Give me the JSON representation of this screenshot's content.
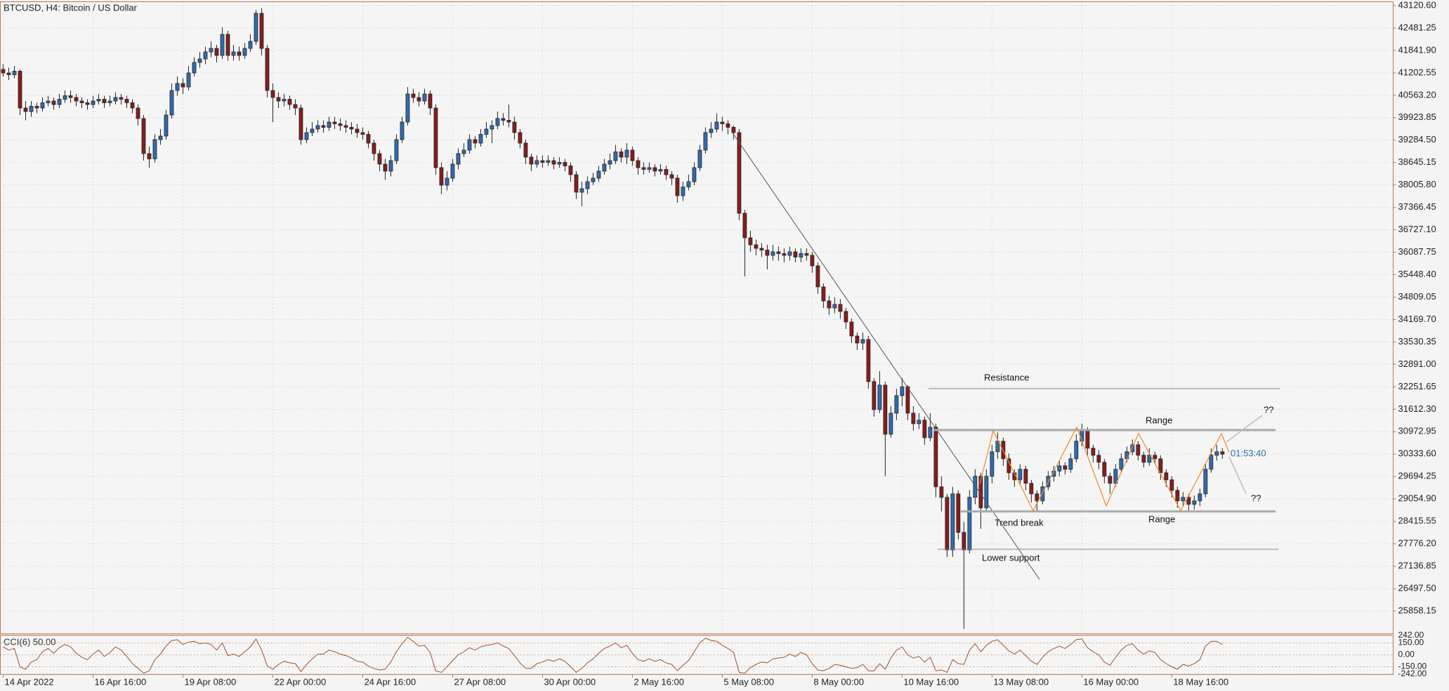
{
  "chart_data": {
    "type": "candlestick",
    "title": "BTCUSD, H4:  Bitcoin / US Dollar",
    "open": [
      41300,
      41200,
      41150,
      41250,
      40200,
      40100,
      40250,
      40200,
      40350,
      40400,
      40300,
      40450,
      40550,
      40500,
      40400,
      40350,
      40300,
      40400,
      40450,
      40350,
      40400,
      40500,
      40450,
      40350,
      40200,
      39900,
      38900,
      38750,
      39300,
      39400,
      40000,
      40700,
      40900,
      40800,
      41200,
      41500,
      41600,
      41800,
      41900,
      41700,
      42300,
      41700,
      41800,
      41700,
      41900,
      42100,
      42900,
      41900,
      40700,
      40500,
      40400,
      40450,
      40300,
      40200,
      39300,
      39500,
      39600,
      39700,
      39650,
      39800,
      39750,
      39700,
      39650,
      39600,
      39500,
      39450,
      39200,
      38900,
      38600,
      38400,
      38700,
      39300,
      39800,
      40600,
      40500,
      40400,
      40600,
      40200,
      38500,
      38000,
      38200,
      38600,
      38900,
      39000,
      39300,
      39200,
      39450,
      39600,
      39700,
      39900,
      39850,
      39800,
      39500,
      39200,
      38800,
      38600,
      38700,
      38650,
      38700,
      38600,
      38650,
      38550,
      38300,
      37800,
      37900,
      38100,
      38200,
      38400,
      38600,
      38700,
      38950,
      38800,
      39000,
      38700,
      38500,
      38450,
      38500,
      38400,
      38450,
      38300,
      38200,
      37700,
      37950,
      38100,
      38500,
      39000,
      39500,
      39600,
      39800,
      39750,
      39650,
      39500,
      37200,
      36500,
      36300,
      36200,
      36150,
      36000,
      36100,
      36050,
      36000,
      36100,
      35950,
      36050,
      36000,
      35700,
      35100,
      34700,
      34500,
      34600,
      34400,
      34100,
      33700,
      33500,
      33600,
      32400,
      31600,
      32300,
      30900,
      31500,
      32000,
      32250,
      31500,
      31200,
      31300,
      30800,
      31100,
      29400,
      29100,
      27600,
      29200,
      28100,
      27600,
      29100,
      29700,
      28800,
      29700,
      30400,
      30700,
      30200,
      29800,
      29600,
      29900,
      29500,
      29200,
      29000,
      29400,
      29700,
      29850,
      30000,
      29900,
      30200,
      30700,
      31000,
      30500,
      30300,
      30100,
      29700,
      29500,
      29900,
      30200,
      30400,
      30600,
      30300,
      30100,
      30300,
      30200,
      29800,
      29600,
      29300,
      29000,
      29100,
      28900,
      29000,
      29200,
      29900,
      30300,
      30400
    ],
    "high": [
      41450,
      41350,
      41400,
      41300,
      40400,
      40400,
      40350,
      40500,
      40550,
      40500,
      40600,
      40700,
      40700,
      40600,
      40500,
      40450,
      40550,
      40600,
      40550,
      40550,
      40650,
      40600,
      40550,
      40450,
      40300,
      40000,
      39100,
      39450,
      39600,
      40150,
      40900,
      41100,
      41050,
      41400,
      41650,
      41800,
      41950,
      42100,
      42000,
      42500,
      42400,
      42000,
      41950,
      42050,
      42300,
      43000,
      43050,
      42000,
      40900,
      40650,
      40600,
      40550,
      40450,
      40300,
      39650,
      39800,
      39850,
      39850,
      39950,
      39950,
      39900,
      39850,
      39800,
      39750,
      39650,
      39550,
      39300,
      39000,
      38750,
      38850,
      39450,
      39950,
      40800,
      40750,
      40650,
      40750,
      40700,
      40300,
      38650,
      38400,
      38750,
      39050,
      39200,
      39450,
      39400,
      39600,
      39800,
      39850,
      40100,
      40050,
      40300,
      39950,
      39600,
      39300,
      38900,
      38850,
      38850,
      38850,
      38800,
      38800,
      38750,
      38650,
      38400,
      38100,
      38250,
      38350,
      38550,
      38750,
      38900,
      39150,
      39050,
      39200,
      39100,
      38800,
      38650,
      38650,
      38600,
      38600,
      38550,
      38400,
      38300,
      38100,
      38300,
      38650,
      39150,
      39650,
      39800,
      40050,
      39950,
      39850,
      39700,
      39600,
      37300,
      36700,
      36450,
      36350,
      36300,
      36300,
      36250,
      36200,
      36250,
      36200,
      36200,
      36200,
      36100,
      35800,
      35200,
      34850,
      34800,
      34750,
      34500,
      34200,
      33800,
      33800,
      33700,
      32500,
      32700,
      32400,
      31700,
      32200,
      32500,
      32300,
      31700,
      31500,
      31400,
      31500,
      31200,
      29700,
      29200,
      29400,
      29300,
      28400,
      29300,
      29900,
      29800,
      29900,
      30600,
      30950,
      30800,
      30350,
      29900,
      30050,
      30000,
      29600,
      29300,
      29550,
      29850,
      30000,
      30150,
      30100,
      30350,
      30900,
      31200,
      31100,
      30600,
      30450,
      30200,
      29800,
      30050,
      30350,
      30550,
      30750,
      30700,
      30400,
      30500,
      30400,
      30300,
      29900,
      29700,
      29400,
      29250,
      29200,
      29150,
      29350,
      30050,
      30500,
      30600,
      30500
    ],
    "low": [
      41100,
      41000,
      41050,
      40000,
      39850,
      39950,
      40050,
      40100,
      40250,
      40150,
      40200,
      40350,
      40350,
      40250,
      40200,
      40150,
      40200,
      40300,
      40200,
      40250,
      40300,
      40300,
      40200,
      40050,
      39700,
      38700,
      38500,
      38650,
      39150,
      39300,
      39900,
      40550,
      40600,
      40700,
      41100,
      41350,
      41450,
      41650,
      41500,
      41600,
      41550,
      41550,
      41550,
      41600,
      41800,
      42000,
      41700,
      40500,
      39800,
      40200,
      40250,
      40150,
      40000,
      39150,
      39200,
      39400,
      39500,
      39500,
      39550,
      39600,
      39550,
      39500,
      39450,
      39350,
      39300,
      39050,
      38700,
      38400,
      38150,
      38250,
      38600,
      39200,
      39700,
      40350,
      40250,
      40300,
      40000,
      38300,
      37750,
      37850,
      38100,
      38450,
      38800,
      38900,
      39050,
      39100,
      39350,
      39200,
      39600,
      39700,
      39650,
      39300,
      39050,
      38600,
      38400,
      38500,
      38500,
      38550,
      38450,
      38500,
      38400,
      38100,
      37600,
      37400,
      37750,
      38000,
      38100,
      38300,
      38450,
      38600,
      38650,
      38600,
      38550,
      38300,
      38300,
      38350,
      38250,
      38300,
      38150,
      38000,
      37500,
      37550,
      37850,
      38000,
      38400,
      38900,
      39350,
      39500,
      39550,
      39450,
      39300,
      37000,
      35400,
      36100,
      36000,
      35950,
      35600,
      35850,
      35850,
      35800,
      35850,
      35800,
      35800,
      35850,
      35500,
      34900,
      34500,
      34300,
      34350,
      34200,
      33900,
      33500,
      33300,
      33300,
      32200,
      31400,
      31500,
      29700,
      30800,
      31300,
      31700,
      31300,
      31000,
      31050,
      30600,
      30700,
      29100,
      28700,
      27400,
      27400,
      27900,
      25350,
      27500,
      28900,
      28200,
      28700,
      29500,
      30200,
      30000,
      29600,
      29400,
      29450,
      29300,
      28950,
      28700,
      28900,
      29300,
      29550,
      29700,
      29750,
      29800,
      30100,
      30550,
      30300,
      30100,
      29900,
      29500,
      29200,
      29400,
      29800,
      30100,
      30300,
      30150,
      29950,
      30000,
      30050,
      29600,
      29400,
      29100,
      28800,
      28850,
      28700,
      28750,
      28850,
      29100,
      29800,
      30150,
      30200
    ],
    "close": [
      41200,
      41150,
      41250,
      40200,
      40100,
      40250,
      40200,
      40350,
      40400,
      40300,
      40450,
      40550,
      40500,
      40400,
      40350,
      40300,
      40400,
      40450,
      40350,
      40400,
      40500,
      40450,
      40350,
      40200,
      39900,
      38900,
      38750,
      39300,
      39400,
      40000,
      40700,
      40900,
      40800,
      41200,
      41500,
      41600,
      41800,
      41900,
      41700,
      42300,
      41700,
      41800,
      41700,
      41900,
      42100,
      42900,
      41900,
      40700,
      40500,
      40400,
      40450,
      40300,
      40200,
      39300,
      39500,
      39600,
      39700,
      39650,
      39800,
      39750,
      39700,
      39650,
      39600,
      39500,
      39450,
      39200,
      38900,
      38600,
      38400,
      38700,
      39300,
      39800,
      40600,
      40500,
      40400,
      40600,
      40200,
      38500,
      38000,
      38200,
      38600,
      38900,
      39000,
      39300,
      39200,
      39450,
      39600,
      39700,
      39900,
      39850,
      39800,
      39500,
      39200,
      38800,
      38600,
      38700,
      38650,
      38700,
      38600,
      38650,
      38550,
      38300,
      37800,
      37900,
      38100,
      38200,
      38400,
      38600,
      38700,
      38950,
      38800,
      39000,
      38700,
      38500,
      38450,
      38500,
      38400,
      38450,
      38300,
      38200,
      37700,
      37950,
      38100,
      38500,
      39000,
      39500,
      39600,
      39800,
      39750,
      39650,
      39500,
      37200,
      36500,
      36300,
      36200,
      36150,
      36000,
      36100,
      36050,
      36000,
      36100,
      35950,
      36050,
      36000,
      35700,
      35100,
      34700,
      34500,
      34600,
      34400,
      34100,
      33700,
      33500,
      33600,
      32400,
      31600,
      32300,
      30900,
      31500,
      32000,
      32250,
      31500,
      31200,
      31300,
      30800,
      31100,
      29400,
      29100,
      27600,
      29200,
      28100,
      27600,
      29100,
      29700,
      28800,
      29700,
      30400,
      30700,
      30200,
      29800,
      29600,
      29900,
      29500,
      29200,
      29000,
      29400,
      29700,
      29850,
      30000,
      29900,
      30200,
      30700,
      31000,
      30500,
      30300,
      30100,
      29700,
      29500,
      29900,
      30200,
      30400,
      30600,
      30300,
      30100,
      30300,
      30200,
      29800,
      29600,
      29300,
      29000,
      29100,
      28900,
      29000,
      29200,
      29900,
      30300,
      30400,
      30330
    ],
    "up_color": "#2e6cb3",
    "down_color": "#8a1c1c",
    "xlim": [
      -0.5,
      247.4
    ],
    "xticks": [
      {
        "value": 0,
        "label": "14 Apr 2022"
      },
      {
        "value": 16,
        "label": "16 Apr 16:00"
      },
      {
        "value": 32,
        "label": "19 Apr 08:00"
      },
      {
        "value": 48,
        "label": "22 Apr 00:00"
      },
      {
        "value": 64,
        "label": "24 Apr 16:00"
      },
      {
        "value": 80,
        "label": "27 Apr 08:00"
      },
      {
        "value": 96,
        "label": "30 Apr 00:00"
      },
      {
        "value": 112,
        "label": "2 May 16:00"
      },
      {
        "value": 128,
        "label": "5 May 08:00"
      },
      {
        "value": 144,
        "label": "8 May 00:00"
      },
      {
        "value": 160,
        "label": "10 May 16:00"
      },
      {
        "value": 176,
        "label": "13 May 08:00"
      },
      {
        "value": 192,
        "label": "16 May 00:00"
      },
      {
        "value": 208,
        "label": "18 May 16:00"
      }
    ],
    "ylim": [
      25218,
      43220
    ],
    "yticks": [
      {
        "value": 43120.6,
        "label": "43120.60"
      },
      42481.25,
      {
        "value": 41841.9,
        "label": "41841.90"
      },
      41202.55,
      {
        "value": 40563.2,
        "label": "40563.20"
      },
      39923.85,
      {
        "value": 39284.5,
        "label": "39284.50"
      },
      38645.15,
      {
        "value": 38005.8,
        "label": "38005.80"
      },
      37366.45,
      {
        "value": 36727.1,
        "label": "36727.10"
      },
      36087.75,
      {
        "value": 35448.4,
        "label": "35448.40"
      },
      34809.05,
      {
        "value": 34169.7,
        "label": "34169.70"
      },
      33530.35,
      {
        "value": 32891,
        "label": "32891.00"
      },
      32251.65,
      {
        "value": 31612.3,
        "label": "31612.30"
      },
      30972.95,
      {
        "value": 30333.6,
        "label": "30333.60"
      },
      29694.25,
      {
        "value": 29054.9,
        "label": "29054.90"
      },
      28415.55,
      {
        "value": 27776.2,
        "label": "27776.20"
      },
      27136.85,
      {
        "value": 26497.5,
        "label": "26497.50"
      },
      25858.15
    ],
    "grid": true,
    "countdown": "01:53:40",
    "annotations": [
      "Resistance",
      "Range",
      "Trend break",
      "Lower support",
      "Range",
      "??",
      "??"
    ],
    "indicator": {
      "type": "line",
      "title": "CCI(6) 50.00",
      "color": "#a0522d",
      "values": [
        100,
        60,
        80,
        -150,
        -180,
        -90,
        -60,
        40,
        80,
        20,
        90,
        130,
        100,
        20,
        -30,
        -60,
        10,
        60,
        -20,
        30,
        100,
        60,
        -20,
        -110,
        -170,
        -230,
        -200,
        -60,
        10,
        110,
        180,
        190,
        130,
        160,
        170,
        140,
        150,
        130,
        60,
        150,
        -10,
        10,
        -20,
        40,
        100,
        200,
        60,
        -140,
        -180,
        -120,
        -80,
        -100,
        -110,
        -210,
        -120,
        -50,
        10,
        10,
        60,
        40,
        10,
        -10,
        -40,
        -80,
        -90,
        -140,
        -170,
        -190,
        -180,
        -90,
        40,
        140,
        220,
        170,
        110,
        120,
        30,
        -200,
        -220,
        -150,
        -70,
        0,
        40,
        90,
        60,
        100,
        120,
        130,
        150,
        110,
        80,
        -10,
        -100,
        -170,
        -170,
        -110,
        -90,
        -60,
        -80,
        -50,
        -80,
        -150,
        -220,
        -170,
        -100,
        -50,
        20,
        80,
        110,
        150,
        90,
        120,
        20,
        -60,
        -80,
        -50,
        -80,
        -60,
        -100,
        -120,
        -200,
        -130,
        -70,
        40,
        150,
        210,
        180,
        170,
        120,
        80,
        30,
        -220,
        -230,
        -160,
        -120,
        -90,
        -100,
        -50,
        -40,
        -30,
        10,
        -20,
        30,
        0,
        -110,
        -190,
        -200,
        -170,
        -120,
        -130,
        -150,
        -170,
        -160,
        -120,
        -200,
        -200,
        -110,
        -180,
        -40,
        60,
        100,
        0,
        -40,
        -20,
        -90,
        -30,
        -200,
        -190,
        -220,
        -60,
        -110,
        -120,
        60,
        140,
        40,
        120,
        170,
        190,
        120,
        50,
        10,
        60,
        -10,
        -80,
        -120,
        -30,
        40,
        80,
        110,
        80,
        130,
        190,
        200,
        90,
        40,
        0,
        -90,
        -130,
        -30,
        60,
        120,
        140,
        60,
        10,
        50,
        30,
        -60,
        -110,
        -150,
        -180,
        -120,
        -140,
        -110,
        -60,
        110,
        170,
        170,
        130
      ],
      "ylim": [
        -242,
        242
      ],
      "yticks": [
        {
          "value": 242,
          "label": "242.00"
        },
        {
          "value": 150,
          "label": "150.00"
        },
        {
          "value": 0,
          "label": "0.00"
        },
        {
          "value": -150,
          "label": "-150.00"
        },
        {
          "value": -242,
          "label": "-242.00"
        }
      ]
    }
  }
}
